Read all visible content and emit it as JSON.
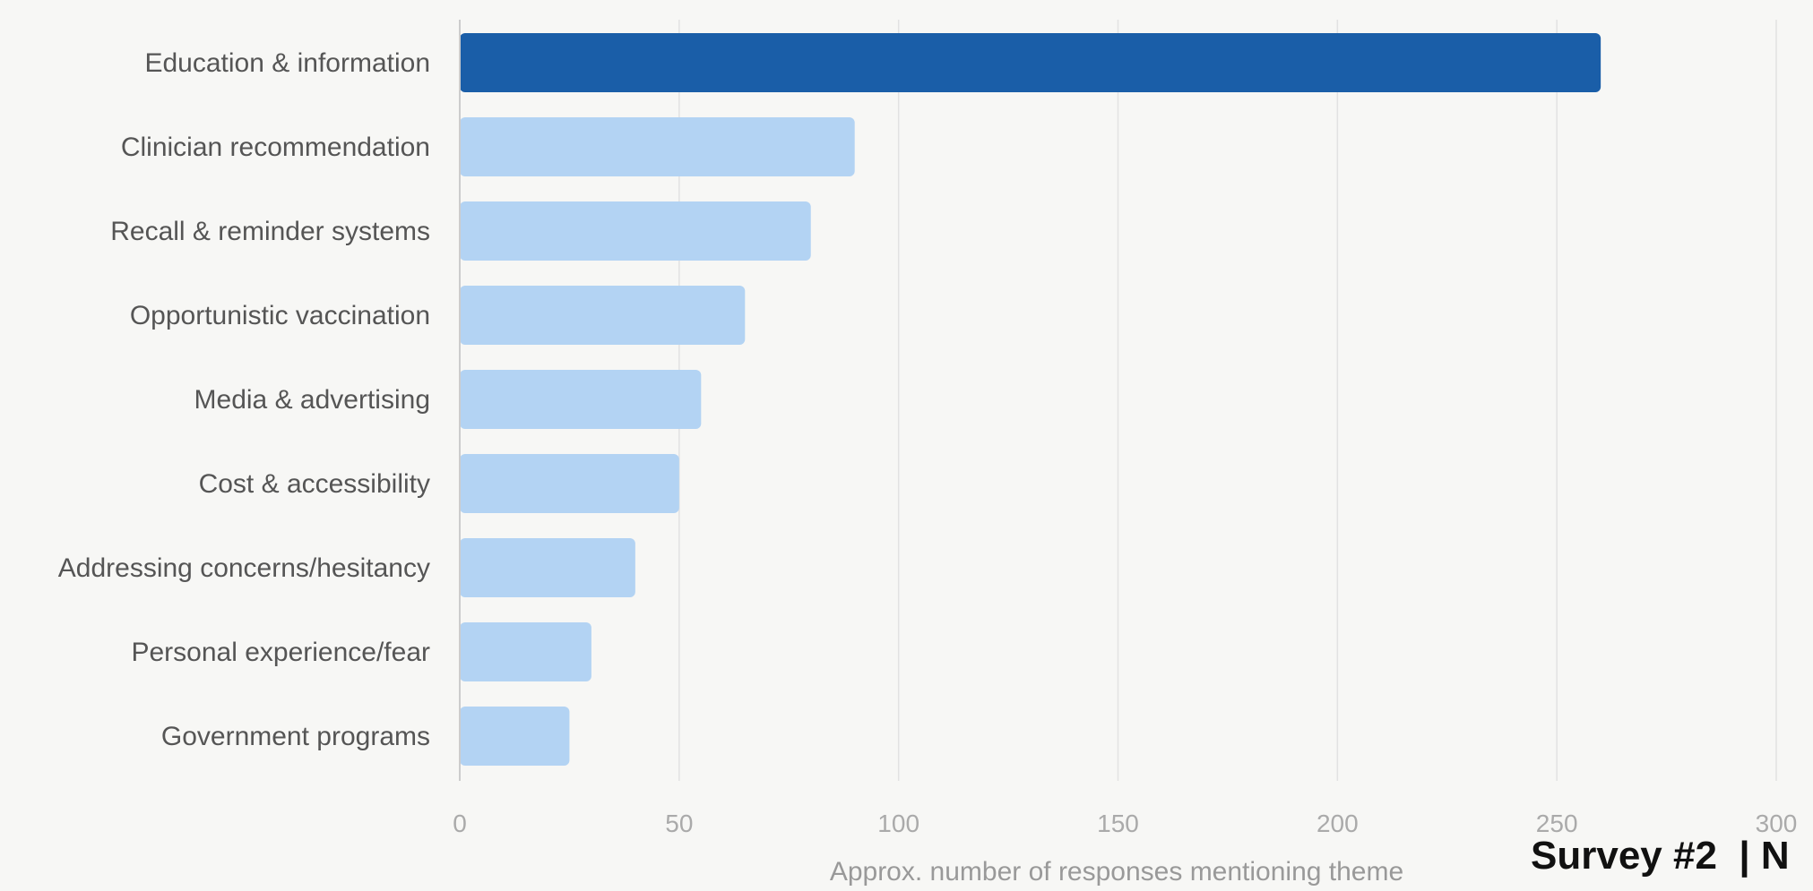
{
  "chart_data": {
    "type": "bar",
    "orientation": "horizontal",
    "categories": [
      "Education & information",
      "Clinician recommendation",
      "Recall & reminder systems",
      "Opportunistic vaccination",
      "Media & advertising",
      "Cost & accessibility",
      "Addressing concerns/hesitancy",
      "Personal experience/fear",
      "Government programs"
    ],
    "values": [
      260,
      90,
      80,
      65,
      55,
      50,
      40,
      30,
      25
    ],
    "highlight_index": 0,
    "xlabel": "Approx. number of responses mentioning theme",
    "ylabel": "",
    "title": "",
    "xlim": [
      0,
      300
    ],
    "xticks": [
      0,
      50,
      100,
      150,
      200,
      250,
      300
    ],
    "grid": "vertical",
    "legend": "none",
    "colors": {
      "highlight": "#1a5ea8",
      "bar": "#b3d3f3",
      "grid": "#e2e2e2",
      "axis": "#cccccc",
      "background": "#f7f7f5"
    }
  },
  "footer": {
    "text": "Survey #2  | N"
  }
}
